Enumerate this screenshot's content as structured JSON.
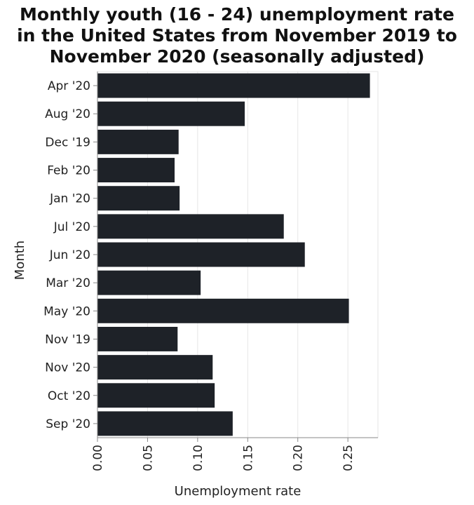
{
  "chart_data": {
    "type": "bar",
    "orientation": "horizontal",
    "title_lines": [
      "Monthly youth (16 - 24) unemployment rate",
      "in the United States from November 2019 to",
      "November 2020 (seasonally adjusted)"
    ],
    "xlabel": "Unemployment rate",
    "ylabel": "Month",
    "categories": [
      "Apr '20",
      "Aug '20",
      "Dec '19",
      "Feb '20",
      "Jan '20",
      "Jul '20",
      "Jun '20",
      "Mar '20",
      "May '20",
      "Nov '19",
      "Nov '20",
      "Oct '20",
      "Sep '20"
    ],
    "values": [
      0.272,
      0.147,
      0.081,
      0.077,
      0.082,
      0.186,
      0.207,
      0.103,
      0.251,
      0.08,
      0.115,
      0.117,
      0.135
    ],
    "xlim": [
      0,
      0.28
    ],
    "xticks": [
      "0.00",
      "0.05",
      "0.10",
      "0.15",
      "0.20",
      "0.25"
    ],
    "xtick_values": [
      0,
      0.05,
      0.1,
      0.15,
      0.2,
      0.25
    ],
    "grid": "vertical",
    "bar_color": "#1e2228",
    "grid_color": "#e6e6e6",
    "axis_color": "#888888"
  }
}
